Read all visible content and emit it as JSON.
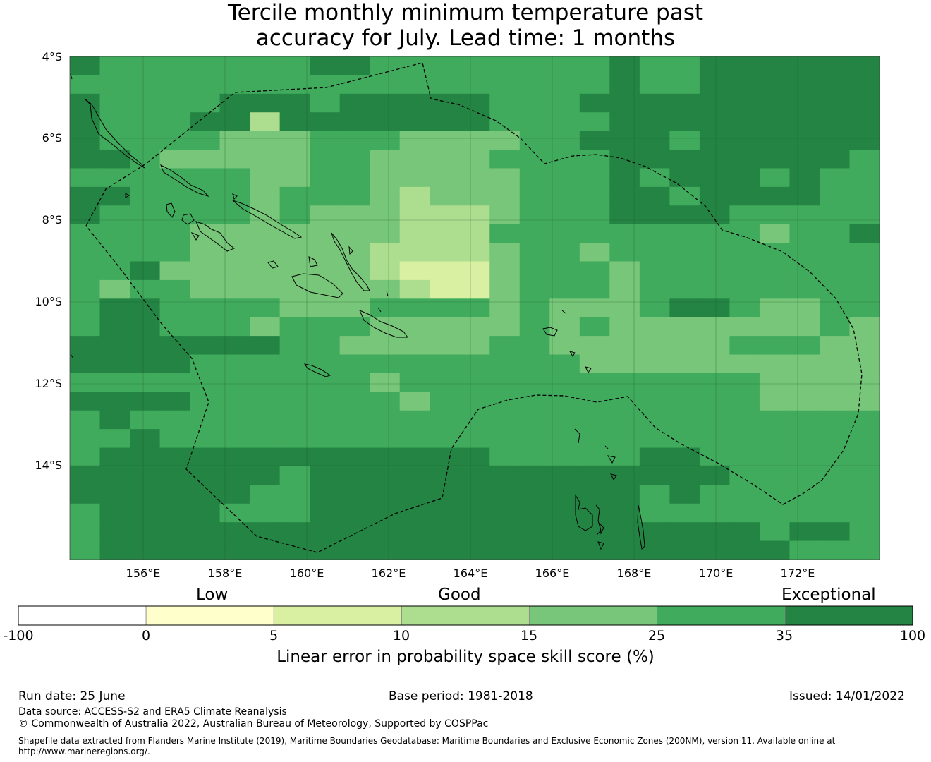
{
  "title": {
    "line1": "Tercile monthly minimum temperature past",
    "line2": "accuracy for July. Lead time: 1 months"
  },
  "lat_labels": [
    "4°S",
    "6°S",
    "8°S",
    "10°S",
    "12°S",
    "14°S"
  ],
  "lon_labels": [
    "156°E",
    "158°E",
    "160°E",
    "162°E",
    "164°E",
    "166°E",
    "168°E",
    "170°E",
    "172°E"
  ],
  "colorbar": {
    "category_labels": [
      "Low",
      "Good",
      "Exceptional"
    ],
    "ticks": [
      "-100",
      "0",
      "5",
      "10",
      "15",
      "25",
      "35",
      "100"
    ],
    "colors": [
      "#ffffff",
      "#ffffcc",
      "#d9f0a3",
      "#addd8e",
      "#78c679",
      "#41ab5d",
      "#238443"
    ],
    "title": "Linear error in probability space skill score (%)"
  },
  "grid": {
    "legend": "0 = #d9f0a3 (5-10), 1 = #addd8e (10-15), 2 = #78c679 (15-25), 3 = #41ab5d (25-35), 4 = #238443 (35-100)",
    "rows": [
      "433333334433333333433444444",
      "333333333333333333433444444",
      "433334443444443334444444444",
      "433344144444443333444444444",
      "433332223332222334443444444",
      "443222223322223333444444443",
      "333333223322222333434443433",
      "443333233321222333443444433",
      "433333232221112333444433333",
      "333322222221113333333332334",
      "333322222211112332333333333",
      "334222222210002333233333333",
      "323322222221002333233333333",
      "344333322233332322234432233",
      "344333233322222323222222232",
      "444444433222223322222233322",
      "444433333333333332222222222",
      "333333333323333333333332222",
      "444433333332333333333332222",
      "343333333333333333333333333",
      "334333333333333333333333333",
      "344444444444443333344333333",
      "444444434444444444444433333",
      "444444334444444444434333333",
      "344443334444444444433333333",
      "344444444444444444444443443",
      "344444444444444444444444333"
    ]
  },
  "footer": {
    "run_date": "Run date: 25 June",
    "base_period": "Base period: 1981-2018",
    "issued": "Issued: 14/01/2022",
    "data_source": "Data source: ACCESS-S2 and ERA5 Climate Reanalysis",
    "copyright": "© Commonwealth of Australia 2022, Australian Bureau of Meteorology, Supported by COSPPac",
    "shapefile_line1": "Shapefile data extracted from Flanders Marine Institute (2019), Maritime Boundaries Geodatabase: Maritime Boundaries and Exclusive Economic Zones (200NM), version 11. Available online at",
    "shapefile_line2": "http://www.marineregions.org/."
  }
}
